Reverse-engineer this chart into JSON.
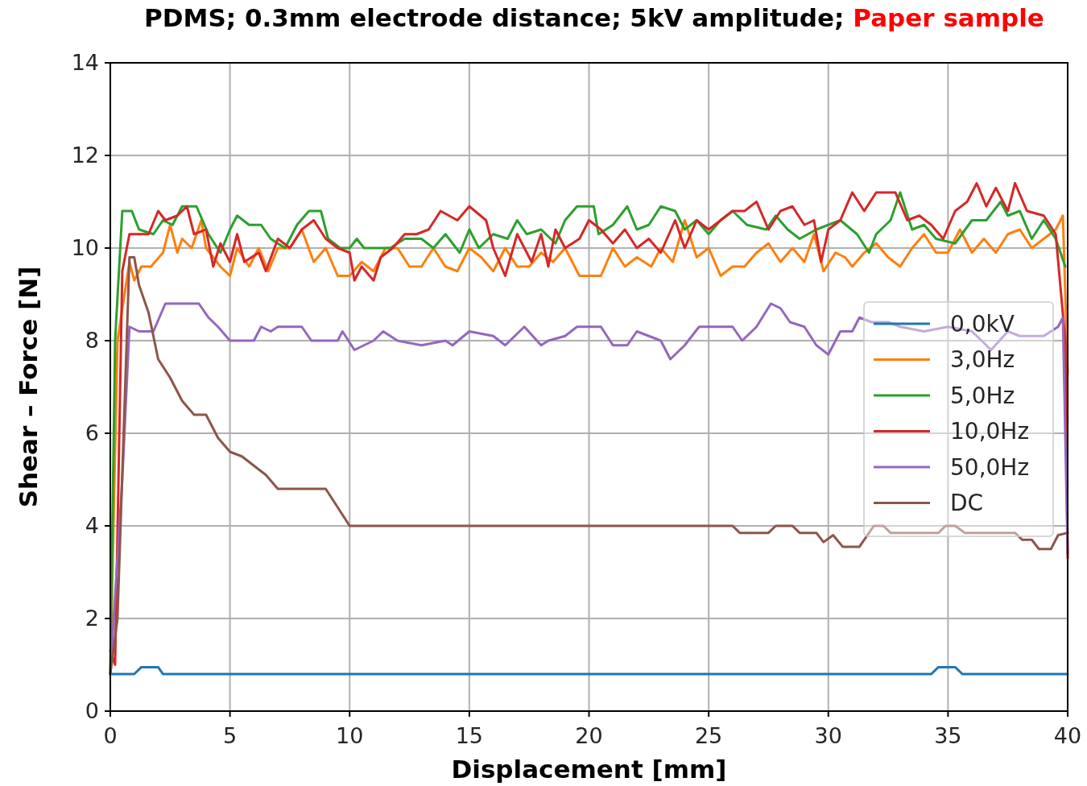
{
  "chart_data": {
    "type": "line",
    "title": "PDMS; 0.3mm electrode distance; 5kV amplitude;",
    "subtitle": "Paper sample",
    "xlabel": "Displacement [mm]",
    "ylabel": "Shear – Force [N]",
    "xlim": [
      0,
      40
    ],
    "ylim": [
      0,
      14
    ],
    "xticks": [
      0,
      5,
      10,
      15,
      20,
      25,
      30,
      35,
      40
    ],
    "yticks": [
      0,
      2,
      4,
      6,
      8,
      10,
      12,
      14
    ],
    "grid": true,
    "legend": "right",
    "line_style": "solid",
    "marker": "none",
    "series": [
      {
        "name": "0,0kV",
        "color": "#1f77b4",
        "x": [
          0,
          1,
          1.3,
          2,
          2.2,
          34.3,
          34.6,
          35.3,
          35.6,
          40
        ],
        "values": [
          0.8,
          0.8,
          0.95,
          0.95,
          0.8,
          0.8,
          0.95,
          0.95,
          0.8,
          0.8
        ]
      },
      {
        "name": "3,0Hz",
        "color": "#ff7f0e",
        "x": [
          0,
          0.3,
          0.8,
          1,
          1.3,
          1.7,
          2.2,
          2.5,
          2.8,
          3,
          3.4,
          3.8,
          4,
          4.6,
          5,
          5.3,
          5.8,
          6.2,
          6.6,
          7,
          7.5,
          8,
          8.5,
          9,
          9.5,
          10,
          10.5,
          11,
          11.5,
          12,
          12.5,
          13,
          13.5,
          14,
          14.5,
          15,
          15.5,
          16,
          16.5,
          17,
          17.5,
          18,
          18.5,
          19,
          19.6,
          20.5,
          21,
          21.5,
          22,
          22.6,
          23,
          23.5,
          24,
          24.5,
          25,
          25.5,
          26,
          26.5,
          27,
          27.5,
          28,
          28.5,
          29,
          29.4,
          29.8,
          30.3,
          30.7,
          31,
          31.5,
          32,
          32.5,
          33,
          33.5,
          34,
          34.5,
          35,
          35.5,
          36,
          36.5,
          37,
          37.5,
          38,
          38.5,
          39,
          39.5,
          39.8,
          40
        ],
        "values": [
          0.8,
          8,
          9.7,
          9.3,
          9.6,
          9.6,
          9.9,
          10.5,
          9.9,
          10.2,
          10,
          10.6,
          10,
          9.6,
          9.4,
          10,
          9.6,
          10,
          9.5,
          10,
          10,
          10.4,
          9.7,
          10,
          9.4,
          9.4,
          9.7,
          9.5,
          10,
          10,
          9.6,
          9.6,
          10,
          9.6,
          9.5,
          10,
          9.8,
          9.5,
          10,
          9.6,
          9.6,
          9.9,
          9.7,
          10,
          9.4,
          9.4,
          10,
          9.6,
          9.8,
          9.6,
          10,
          9.7,
          10.6,
          9.8,
          10,
          9.4,
          9.6,
          9.6,
          9.9,
          10.1,
          9.7,
          10,
          9.7,
          10.3,
          9.5,
          9.9,
          9.8,
          9.6,
          9.9,
          10.1,
          9.8,
          9.6,
          10,
          10.3,
          9.9,
          9.9,
          10.4,
          9.9,
          10.2,
          9.9,
          10.3,
          10.4,
          10,
          10.2,
          10.4,
          10.7,
          7.3
        ]
      },
      {
        "name": "5,0Hz",
        "color": "#2ca02c",
        "x": [
          0,
          0.2,
          0.5,
          0.9,
          1.2,
          1.8,
          2.2,
          2.6,
          3,
          3.6,
          4.1,
          4.6,
          5,
          5.3,
          5.8,
          6.3,
          6.7,
          7.3,
          7.8,
          8.3,
          8.8,
          9.1,
          9.6,
          10,
          10.3,
          10.6,
          11.7,
          12.3,
          13,
          13.5,
          14,
          14.6,
          15,
          15.4,
          16,
          16.6,
          17,
          17.4,
          18,
          18.6,
          19,
          19.5,
          20.2,
          20.4,
          21,
          21.6,
          22,
          22.5,
          23,
          23.6,
          24,
          24.5,
          25,
          25.5,
          26,
          26.6,
          27.4,
          27.8,
          28.3,
          28.8,
          29.5,
          30,
          30.5,
          31.2,
          31.7,
          32,
          32.6,
          33,
          33.5,
          34,
          34.5,
          35.3,
          36,
          36.6,
          37.2,
          37.5,
          38,
          38.5,
          39,
          39.5,
          39.9
        ],
        "values": [
          0.8,
          8,
          10.8,
          10.8,
          10.4,
          10.3,
          10.6,
          10.5,
          10.9,
          10.9,
          10.3,
          9.9,
          10.4,
          10.7,
          10.5,
          10.5,
          10.2,
          10,
          10.5,
          10.8,
          10.8,
          10.2,
          10,
          10,
          10.2,
          10,
          10,
          10.2,
          10.2,
          10,
          10.3,
          9.9,
          10.4,
          10,
          10.3,
          10.2,
          10.6,
          10.3,
          10.4,
          10.1,
          10.6,
          10.9,
          10.9,
          10.3,
          10.5,
          10.9,
          10.4,
          10.5,
          10.9,
          10.8,
          10.4,
          10.6,
          10.3,
          10.6,
          10.8,
          10.5,
          10.4,
          10.7,
          10.4,
          10.2,
          10.4,
          10.5,
          10.6,
          10.3,
          9.9,
          10.3,
          10.6,
          11.2,
          10.4,
          10.5,
          10.2,
          10.1,
          10.6,
          10.6,
          11,
          10.7,
          10.8,
          10.2,
          10.6,
          10.2,
          9.6
        ]
      },
      {
        "name": "10,0Hz",
        "color": "#d62728",
        "x": [
          0,
          0.2,
          0.5,
          0.8,
          1.6,
          2,
          2.3,
          2.8,
          3.2,
          3.5,
          4,
          4.3,
          4.6,
          5,
          5.3,
          5.6,
          6.2,
          6.5,
          7,
          7.5,
          8,
          8.5,
          9,
          9.5,
          10,
          10.2,
          10.5,
          11,
          11.3,
          11.8,
          12.3,
          12.8,
          13.3,
          13.8,
          14.5,
          15,
          15.7,
          16,
          16.5,
          17,
          17.6,
          18,
          18.3,
          18.6,
          19,
          19.6,
          20,
          20.5,
          21,
          21.5,
          22,
          22.5,
          23,
          23.6,
          24,
          24.5,
          25,
          25.5,
          26,
          26.5,
          27,
          27.5,
          28,
          28.5,
          29,
          29.4,
          29.7,
          30,
          30.5,
          31,
          31.5,
          32,
          32.8,
          33.3,
          33.8,
          34.3,
          34.8,
          35.3,
          35.8,
          36.2,
          36.6,
          37,
          37.5,
          37.8,
          38.3,
          39,
          39.5,
          39.9,
          40
        ],
        "values": [
          1.3,
          1,
          9.5,
          10.3,
          10.3,
          10.8,
          10.6,
          10.7,
          10.9,
          10.3,
          10.4,
          9.6,
          10.1,
          9.7,
          10.3,
          9.7,
          9.9,
          9.5,
          10.2,
          10,
          10.4,
          10.6,
          10.2,
          10,
          9.9,
          9.3,
          9.6,
          9.3,
          9.8,
          10,
          10.3,
          10.3,
          10.4,
          10.8,
          10.6,
          10.9,
          10.6,
          10,
          9.4,
          10.3,
          9.7,
          10.3,
          9.6,
          10.4,
          10,
          10.2,
          10.6,
          10.4,
          10.1,
          10.4,
          10,
          10.2,
          9.9,
          10.6,
          10,
          10.6,
          10.4,
          10.6,
          10.8,
          10.8,
          11,
          10.4,
          10.8,
          10.9,
          10.5,
          10.6,
          9.7,
          10.4,
          10.6,
          11.2,
          10.8,
          11.2,
          11.2,
          10.6,
          10.7,
          10.5,
          10.2,
          10.8,
          11,
          11.4,
          10.9,
          11.3,
          10.8,
          11.4,
          10.8,
          10.7,
          10.3,
          8,
          3.3
        ]
      },
      {
        "name": "50,0Hz",
        "color": "#9467bd",
        "x": [
          0,
          0.5,
          0.8,
          1.2,
          1.8,
          2.3,
          3.7,
          4.1,
          4.5,
          5,
          6,
          6.3,
          6.7,
          7,
          8,
          8.4,
          9.5,
          9.7,
          10.2,
          10.6,
          11,
          11.4,
          12,
          13,
          14,
          14.3,
          15,
          16,
          16.5,
          17.3,
          18,
          18.3,
          19,
          19.5,
          20.5,
          21,
          21.6,
          22,
          23,
          23.4,
          24,
          24.6,
          26,
          26.4,
          27,
          27.6,
          28,
          28.4,
          29,
          29.5,
          30,
          30.5,
          31,
          31.3,
          31.8,
          32.5,
          33,
          34,
          35,
          36,
          36.8,
          37.5,
          38,
          39,
          39.6,
          39.8,
          40
        ],
        "values": [
          0.8,
          5,
          8.3,
          8.2,
          8.2,
          8.8,
          8.8,
          8.5,
          8.3,
          8,
          8,
          8.3,
          8.2,
          8.3,
          8.3,
          8,
          8,
          8.2,
          7.8,
          7.9,
          8,
          8.2,
          8,
          7.9,
          8,
          7.9,
          8.2,
          8.1,
          7.9,
          8.3,
          7.9,
          8,
          8.1,
          8.3,
          8.3,
          7.9,
          7.9,
          8.2,
          8,
          7.6,
          7.9,
          8.3,
          8.3,
          8,
          8.3,
          8.8,
          8.7,
          8.4,
          8.3,
          7.9,
          7.7,
          8.2,
          8.2,
          8.5,
          8.4,
          8.4,
          8.3,
          8.2,
          8.3,
          8.2,
          7.8,
          8.2,
          8.1,
          8.1,
          8.3,
          8.5,
          3.4
        ]
      },
      {
        "name": "DC",
        "color": "#8c564b",
        "x": [
          0,
          0.3,
          0.8,
          1,
          1.2,
          1.6,
          2,
          2.5,
          3,
          3.5,
          4,
          4.5,
          5,
          5.5,
          6,
          6.5,
          7,
          9,
          10,
          26,
          26.3,
          27.5,
          27.8,
          28.5,
          28.8,
          29.5,
          29.8,
          30.2,
          30.6,
          31.3,
          31.9,
          32.3,
          32.6,
          34.6,
          34.9,
          35.3,
          35.7,
          37.8,
          38.1,
          38.5,
          38.8,
          39.3,
          39.6,
          40
        ],
        "values": [
          0.8,
          2,
          9.8,
          9.8,
          9.2,
          8.6,
          7.6,
          7.2,
          6.7,
          6.4,
          6.4,
          5.9,
          5.6,
          5.5,
          5.3,
          5.1,
          4.8,
          4.8,
          4,
          4,
          3.85,
          3.85,
          4,
          4,
          3.85,
          3.85,
          3.65,
          3.8,
          3.55,
          3.55,
          4,
          4,
          3.85,
          3.85,
          4,
          4,
          3.85,
          3.85,
          3.7,
          3.7,
          3.5,
          3.5,
          3.8,
          3.85
        ]
      }
    ]
  }
}
